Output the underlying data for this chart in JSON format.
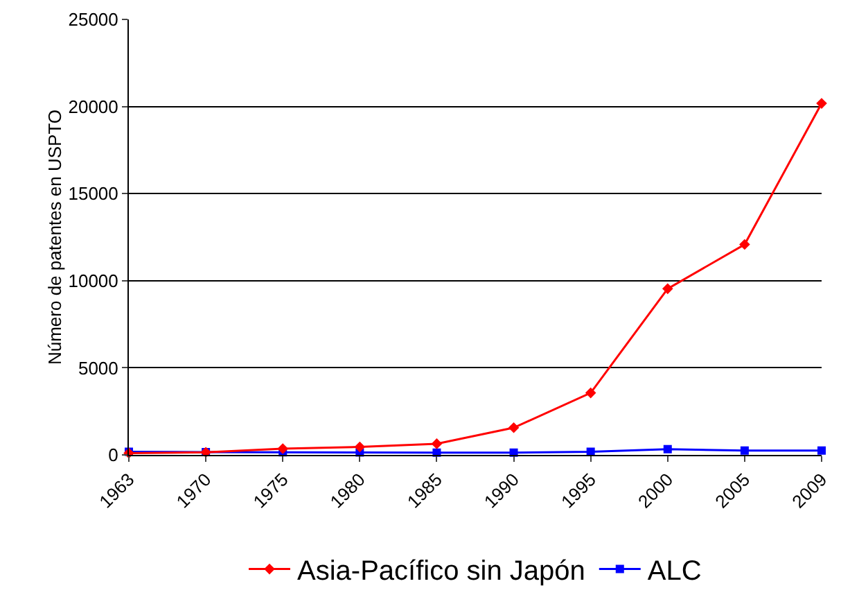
{
  "chart_data": {
    "type": "line",
    "ylabel": "Número de patentes en USPTO",
    "categories": [
      "1963",
      "1970",
      "1975",
      "1980",
      "1985",
      "1990",
      "1995",
      "2000",
      "2005",
      "2009"
    ],
    "series": [
      {
        "name": "Asia-Pacífico sin Japón",
        "color": "#ff0000",
        "marker": "diamond",
        "values": [
          100,
          150,
          360,
          460,
          640,
          1560,
          3560,
          9540,
          12080,
          20180
        ]
      },
      {
        "name": "ALC",
        "color": "#0000ff",
        "marker": "square",
        "values": [
          180,
          160,
          150,
          140,
          130,
          130,
          180,
          330,
          250,
          250
        ]
      }
    ],
    "ylim": [
      0,
      25000
    ],
    "yticks": [
      0,
      5000,
      10000,
      15000,
      20000,
      25000
    ],
    "grid": "y",
    "legend": "bottom"
  }
}
